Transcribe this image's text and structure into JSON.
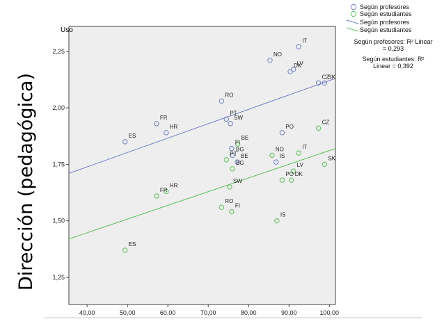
{
  "chart_data": {
    "type": "scatter",
    "title": "",
    "xlabel": "Uso",
    "ylabel": "Dirección (pedagógica)",
    "xlim": [
      35.5,
      101.5
    ],
    "ylim": [
      1.13,
      2.36
    ],
    "xticks": [
      "40,00",
      "50,00",
      "60,00",
      "70,00",
      "80,00",
      "90,00",
      "100,00"
    ],
    "xtick_values": [
      40,
      50,
      60,
      70,
      80,
      90,
      100
    ],
    "yticks": [
      "1,25",
      "1,50",
      "1,75",
      "2,00",
      "2,25"
    ],
    "ytick_values": [
      1.25,
      1.5,
      1.75,
      2.0,
      2.25
    ],
    "grid": false,
    "legend_position": "top-right",
    "series": [
      {
        "name": "Según profesores",
        "color": "#6f7fc4",
        "points": [
          {
            "label": "IT",
            "x": 92.4,
            "y": 2.27
          },
          {
            "label": "NO",
            "x": 85.3,
            "y": 2.21
          },
          {
            "label": "LV",
            "x": 91.1,
            "y": 2.17
          },
          {
            "label": "DK",
            "x": 90.3,
            "y": 2.16
          },
          {
            "label": "CZ",
            "x": 97.3,
            "y": 2.11
          },
          {
            "label": "SK",
            "x": 98.8,
            "y": 2.11
          },
          {
            "label": "RO",
            "x": 73.3,
            "y": 2.03
          },
          {
            "label": "PT",
            "x": 74.5,
            "y": 1.95
          },
          {
            "label": "SW",
            "x": 75.5,
            "y": 1.93
          },
          {
            "label": "FR",
            "x": 57.2,
            "y": 1.93
          },
          {
            "label": "HR",
            "x": 59.6,
            "y": 1.89
          },
          {
            "label": "PO",
            "x": 88.3,
            "y": 1.89
          },
          {
            "label": "ES",
            "x": 49.4,
            "y": 1.85
          },
          {
            "label": "FI",
            "x": 75.8,
            "y": 1.82
          },
          {
            "label": "BG",
            "x": 76.0,
            "y": 1.79
          },
          {
            "label": "BE",
            "x": 77.2,
            "y": 1.76
          },
          {
            "label": "IS",
            "x": 86.8,
            "y": 1.76
          }
        ],
        "fit_line": {
          "x": [
            35.5,
            101.5
          ],
          "y": [
            1.71,
            2.13
          ]
        }
      },
      {
        "name": "Según estudiantes",
        "color": "#5cbf5c",
        "points": [
          {
            "label": "CZ",
            "x": 97.3,
            "y": 1.91
          },
          {
            "label": "BE",
            "x": 77.3,
            "y": 1.84
          },
          {
            "label": "NO",
            "x": 85.8,
            "y": 1.79
          },
          {
            "label": "IT",
            "x": 92.4,
            "y": 1.8
          },
          {
            "label": "PT",
            "x": 74.5,
            "y": 1.77
          },
          {
            "label": "SK",
            "x": 98.8,
            "y": 1.75
          },
          {
            "label": "BG",
            "x": 76.0,
            "y": 1.73
          },
          {
            "label": "LV",
            "x": 91.1,
            "y": 1.72
          },
          {
            "label": "SW",
            "x": 75.3,
            "y": 1.65
          },
          {
            "label": "PO",
            "x": 88.3,
            "y": 1.68
          },
          {
            "label": "DK",
            "x": 90.6,
            "y": 1.68
          },
          {
            "label": "HR",
            "x": 59.6,
            "y": 1.63
          },
          {
            "label": "FR",
            "x": 57.2,
            "y": 1.61
          },
          {
            "label": "RO",
            "x": 73.3,
            "y": 1.56
          },
          {
            "label": "FI",
            "x": 75.8,
            "y": 1.54
          },
          {
            "label": "IS",
            "x": 87.0,
            "y": 1.5
          },
          {
            "label": "ES",
            "x": 49.4,
            "y": 1.37
          }
        ],
        "fit_line": {
          "x": [
            35.5,
            101.5
          ],
          "y": [
            1.42,
            1.82
          ]
        }
      }
    ],
    "legend": {
      "entries": [
        "Según profesores",
        "Según estudiantes",
        "Según profesores",
        "Según estudiantes"
      ],
      "r2_profesores": [
        "Según profesores: R² Linear",
        "= 0,293"
      ],
      "r2_estudiantes": [
        "Según estudiantes: R²",
        "Linear = 0,392"
      ]
    }
  }
}
